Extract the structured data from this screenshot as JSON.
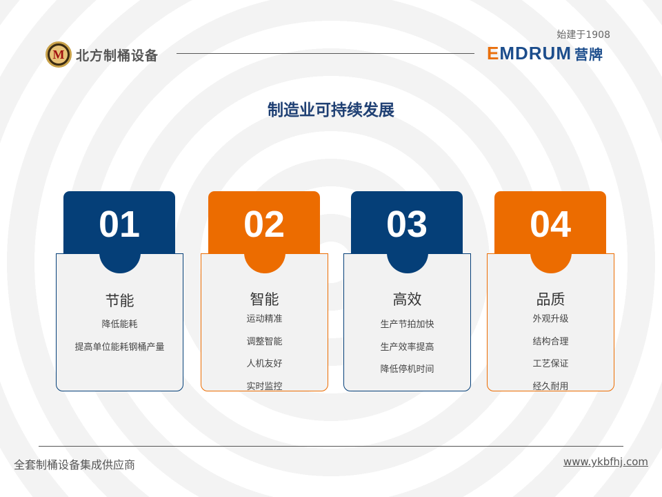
{
  "header": {
    "company_name": "北方制桶设备",
    "since": "始建于1908",
    "brand_latin": "MDRUM",
    "brand_first_letter": "E",
    "brand_cn": "营牌"
  },
  "title": "制造业可持续发展",
  "colors": {
    "navy": "#053f78",
    "orange": "#ec6c00"
  },
  "cards": [
    {
      "number": "01",
      "title": "节能",
      "color": "navy",
      "lines": [
        "降低能耗",
        "提高单位能耗钢桶产量"
      ]
    },
    {
      "number": "02",
      "title": "智能",
      "color": "orange",
      "lines": [
        "运动精准",
        "调整智能",
        "人机友好",
        "实时监控"
      ]
    },
    {
      "number": "03",
      "title": "高效",
      "color": "navy",
      "lines": [
        "生产节拍加快",
        "生产效率提高",
        "降低停机时间"
      ]
    },
    {
      "number": "04",
      "title": "品质",
      "color": "orange",
      "lines": [
        "外观升级",
        "结构合理",
        "工艺保证",
        "经久耐用"
      ]
    }
  ],
  "footer": {
    "left": "全套制桶设备集成供应商",
    "right": "www.ykbfhj.com"
  }
}
